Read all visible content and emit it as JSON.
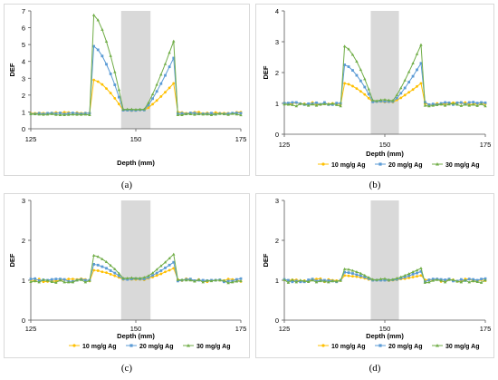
{
  "legend": [
    "10 mg/g Ag",
    "20 mg/g Ag",
    "30 mg/g Ag"
  ],
  "colors": {
    "s10": "#FFC000",
    "s20": "#5B9BD5",
    "s30": "#70AD47",
    "band": "#D9D9D9",
    "axis": "#000000"
  },
  "chart_data": [
    {
      "id": "a",
      "caption": "(a)",
      "type": "line",
      "ylabel": "DEF",
      "xlabel": "Depth (mm)",
      "xlim": [
        125,
        175
      ],
      "ylim": [
        0,
        7
      ],
      "xticks": [
        "125",
        "150",
        "175"
      ],
      "yticks": [
        "0",
        "1",
        "2",
        "3",
        "4",
        "5",
        "6",
        "7"
      ],
      "shaded_region": [
        146.5,
        153.5
      ],
      "show_legend": false,
      "series": [
        {
          "name": "10 mg/g Ag",
          "peak": 2.9,
          "far": 0.95,
          "mid": 1.1,
          "right_peak": 2.7
        },
        {
          "name": "20 mg/g Ag",
          "peak": 4.9,
          "far": 0.9,
          "mid": 1.1,
          "right_peak": 4.2
        },
        {
          "name": "30 mg/g Ag",
          "peak": 6.75,
          "far": 0.85,
          "mid": 1.15,
          "right_peak": 5.2
        }
      ]
    },
    {
      "id": "b",
      "caption": "(b)",
      "type": "line",
      "ylabel": "DEF",
      "xlabel": "Depth (mm)",
      "xlim": [
        125,
        175
      ],
      "ylim": [
        0,
        4
      ],
      "xticks": [
        "125",
        "150",
        "175"
      ],
      "yticks": [
        "0",
        "1",
        "2",
        "3",
        "4"
      ],
      "shaded_region": [
        146.5,
        153.5
      ],
      "show_legend": true,
      "series": [
        {
          "name": "10 mg/g Ag",
          "peak": 1.65,
          "far": 1.0,
          "mid": 1.05,
          "right_peak": 1.65
        },
        {
          "name": "20 mg/g Ag",
          "peak": 2.25,
          "far": 1.0,
          "mid": 1.05,
          "right_peak": 2.3
        },
        {
          "name": "30 mg/g Ag",
          "peak": 2.85,
          "far": 0.95,
          "mid": 1.1,
          "right_peak": 2.9
        }
      ]
    },
    {
      "id": "c",
      "caption": "(c)",
      "type": "line",
      "ylabel": "DEF",
      "xlabel": "Depth (mm)",
      "xlim": [
        125,
        175
      ],
      "ylim": [
        0,
        3
      ],
      "xticks": [
        "125",
        "150",
        "175"
      ],
      "yticks": [
        "0",
        "1",
        "2",
        "3"
      ],
      "shaded_region": [
        146.5,
        153.5
      ],
      "show_legend": true,
      "series": [
        {
          "name": "10 mg/g Ag",
          "peak": 1.25,
          "far": 1.0,
          "mid": 1.02,
          "right_peak": 1.3
        },
        {
          "name": "20 mg/g Ag",
          "peak": 1.4,
          "far": 1.0,
          "mid": 1.03,
          "right_peak": 1.45
        },
        {
          "name": "30 mg/g Ag",
          "peak": 1.62,
          "far": 0.97,
          "mid": 1.05,
          "right_peak": 1.65
        }
      ]
    },
    {
      "id": "d",
      "caption": "(d)",
      "type": "line",
      "ylabel": "DEF",
      "xlabel": "Depth (mm)",
      "xlim": [
        125,
        175
      ],
      "ylim": [
        0,
        3
      ],
      "xticks": [
        "125",
        "150",
        "175"
      ],
      "yticks": [
        "0",
        "1",
        "2",
        "3"
      ],
      "shaded_region": [
        146.5,
        153.5
      ],
      "show_legend": true,
      "series": [
        {
          "name": "10 mg/g Ag",
          "peak": 1.12,
          "far": 1.0,
          "mid": 1.0,
          "right_peak": 1.12
        },
        {
          "name": "20 mg/g Ag",
          "peak": 1.2,
          "far": 1.0,
          "mid": 1.0,
          "right_peak": 1.22
        },
        {
          "name": "30 mg/g Ag",
          "peak": 1.28,
          "far": 0.98,
          "mid": 1.02,
          "right_peak": 1.3
        }
      ]
    }
  ]
}
